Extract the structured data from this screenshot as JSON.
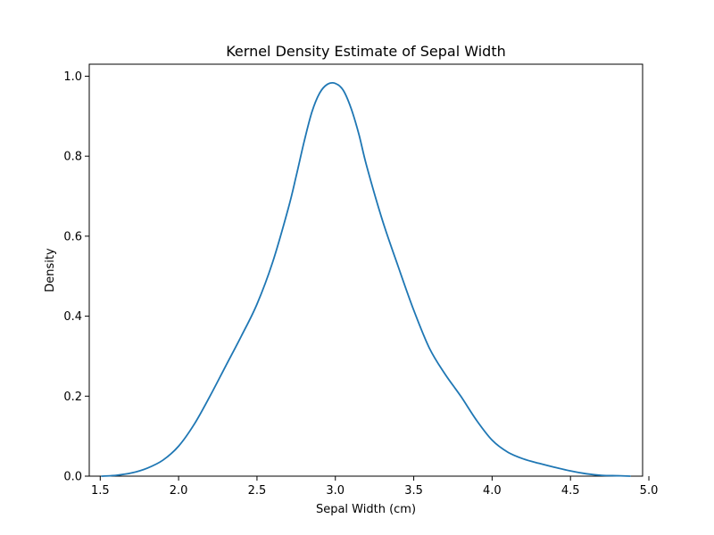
{
  "chart_data": {
    "type": "line",
    "title": "Kernel Density Estimate of Sepal Width",
    "xlabel": "Sepal Width (cm)",
    "ylabel": "Density",
    "xlim": [
      1.43,
      4.96
    ],
    "ylim": [
      0.0,
      1.03
    ],
    "x_ticks": [
      1.5,
      2.0,
      2.5,
      3.0,
      3.5,
      4.0,
      4.5,
      5.0
    ],
    "y_ticks": [
      0.0,
      0.2,
      0.4,
      0.6,
      0.8,
      1.0
    ],
    "x_tick_labels": [
      "1.5",
      "2.0",
      "2.5",
      "3.0",
      "3.5",
      "4.0",
      "4.5",
      "5.0"
    ],
    "y_tick_labels": [
      "0.0",
      "0.2",
      "0.4",
      "0.6",
      "0.8",
      "1.0"
    ],
    "grid": false,
    "series": [
      {
        "color": "#1f77b4",
        "x": [
          1.51,
          1.6,
          1.7,
          1.8,
          1.9,
          2.0,
          2.1,
          2.2,
          2.3,
          2.4,
          2.5,
          2.6,
          2.7,
          2.75,
          2.8,
          2.85,
          2.9,
          2.95,
          3.0,
          3.05,
          3.1,
          3.15,
          3.2,
          3.3,
          3.4,
          3.5,
          3.6,
          3.7,
          3.8,
          3.9,
          4.0,
          4.1,
          4.2,
          4.3,
          4.4,
          4.5,
          4.6,
          4.7,
          4.8,
          4.88
        ],
        "values": [
          0.0,
          0.002,
          0.008,
          0.02,
          0.04,
          0.075,
          0.13,
          0.2,
          0.275,
          0.35,
          0.43,
          0.535,
          0.67,
          0.75,
          0.835,
          0.91,
          0.958,
          0.98,
          0.982,
          0.965,
          0.92,
          0.855,
          0.775,
          0.64,
          0.525,
          0.415,
          0.32,
          0.255,
          0.2,
          0.14,
          0.09,
          0.06,
          0.043,
          0.032,
          0.022,
          0.013,
          0.006,
          0.002,
          0.001,
          0.0
        ]
      }
    ]
  }
}
